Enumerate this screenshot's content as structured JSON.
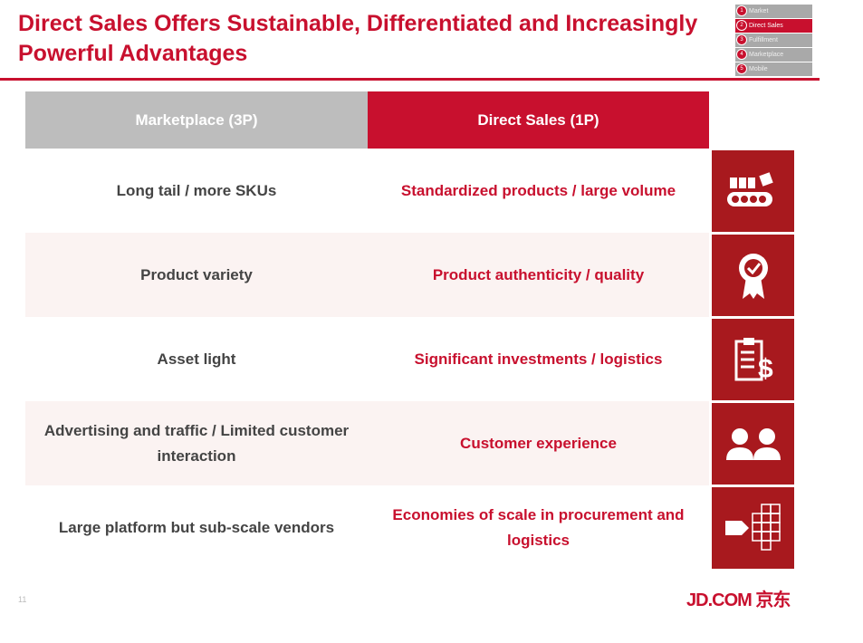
{
  "title": "Direct Sales Offers Sustainable, Differentiated and Increasingly Powerful Advantages",
  "nav": [
    {
      "num": "1",
      "label": "Market",
      "active": false
    },
    {
      "num": "2",
      "label": "Direct Sales",
      "active": true
    },
    {
      "num": "3",
      "label": "Fulfillment",
      "active": false
    },
    {
      "num": "4",
      "label": "Marketplace",
      "active": false
    },
    {
      "num": "5",
      "label": "Mobile",
      "active": false
    }
  ],
  "table": {
    "headers": [
      "Marketplace (3P)",
      "Direct Sales (1P)"
    ],
    "rows": [
      {
        "left": "Long tail / more SKUs",
        "right": "Standardized products / large volume",
        "icon": "conveyor-belt-icon"
      },
      {
        "left": "Product variety",
        "right": "Product authenticity / quality",
        "icon": "quality-badge-icon"
      },
      {
        "left": "Asset light",
        "right": "Significant investments / logistics",
        "icon": "clipboard-dollar-icon"
      },
      {
        "left": "Advertising and traffic / Limited customer interaction",
        "right": "Customer experience",
        "icon": "customers-icon"
      },
      {
        "left": "Large platform but sub-scale vendors",
        "right": "Economies of scale in procurement and logistics",
        "icon": "cube-stack-icon"
      }
    ]
  },
  "page_number": "11",
  "logo": "JD.COM 京东",
  "colors": {
    "accent": "#c8102e",
    "icon_bg": "#a8191e",
    "header_gray": "#bdbdbd"
  }
}
